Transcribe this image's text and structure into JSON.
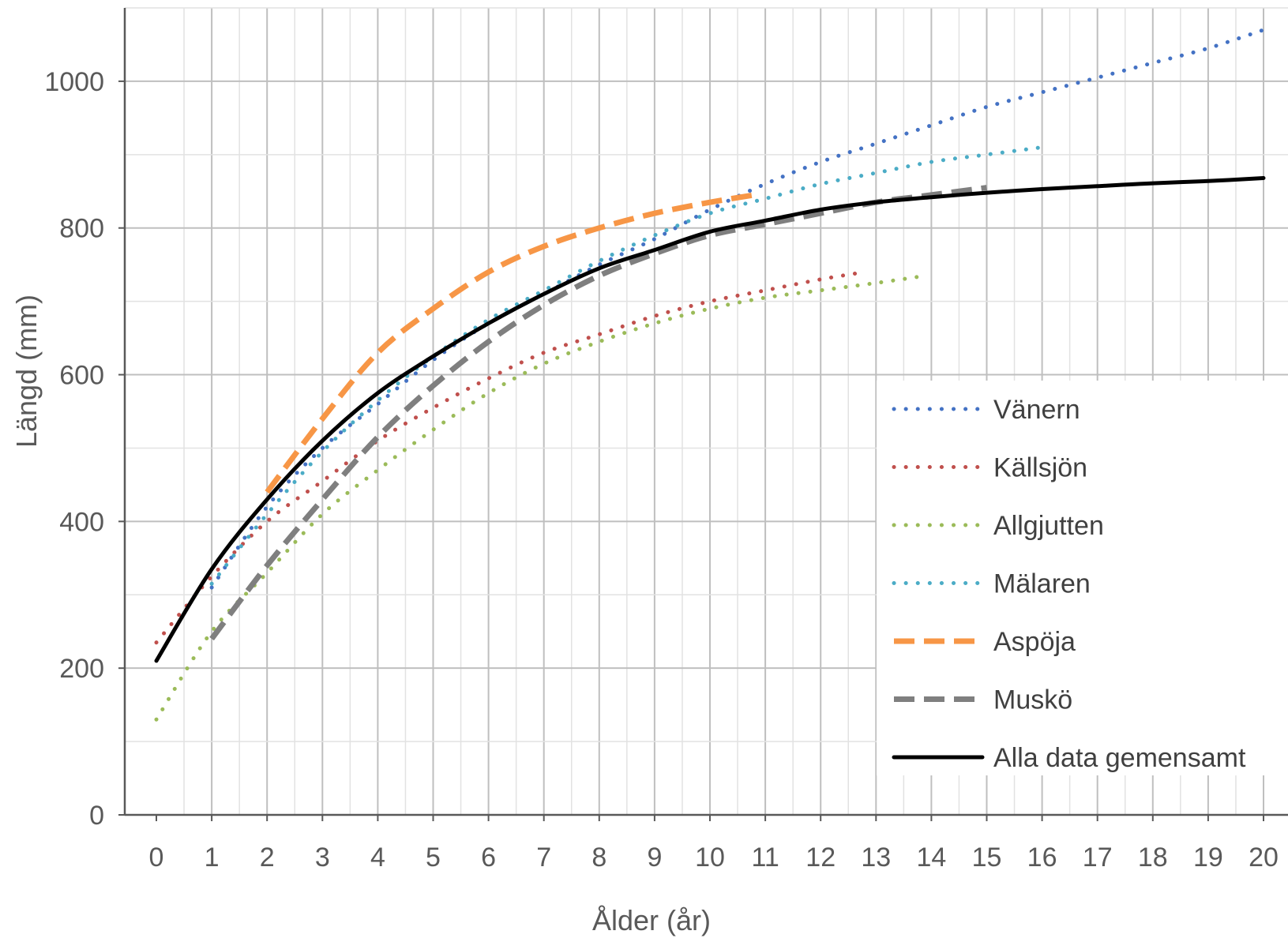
{
  "chart_data": {
    "type": "line",
    "xlabel": "Ålder (år)",
    "ylabel": "Längd (mm)",
    "xlim": [
      0,
      20
    ],
    "ylim": [
      0,
      1100
    ],
    "x_ticks": [
      "0",
      "1",
      "2",
      "3",
      "4",
      "5",
      "6",
      "7",
      "8",
      "9",
      "10",
      "11",
      "12",
      "13",
      "14",
      "15",
      "16",
      "17",
      "18",
      "19",
      "20"
    ],
    "y_ticks": [
      "0",
      "200",
      "400",
      "600",
      "800",
      "1000"
    ],
    "grid": true,
    "legend_position": "right",
    "series": [
      {
        "name": "Vänern",
        "color": "#4472C4",
        "style": "dotted",
        "x": [
          1,
          2,
          3,
          4,
          5,
          6,
          7,
          8,
          9,
          10,
          11,
          12,
          13,
          14,
          15,
          16,
          17,
          18,
          19,
          20
        ],
        "y": [
          310,
          420,
          500,
          560,
          620,
          670,
          710,
          750,
          785,
          825,
          860,
          890,
          915,
          940,
          965,
          985,
          1005,
          1025,
          1045,
          1070
        ]
      },
      {
        "name": "Källsjön",
        "color": "#C0504D",
        "style": "dotted",
        "x": [
          0,
          1,
          2,
          3,
          4,
          5,
          6,
          7,
          8,
          9,
          10,
          11,
          12,
          12.8
        ],
        "y": [
          235,
          325,
          400,
          455,
          510,
          555,
          595,
          630,
          655,
          680,
          700,
          715,
          730,
          740
        ]
      },
      {
        "name": "Allgjutten",
        "color": "#9BBB59",
        "style": "dotted",
        "x": [
          0,
          1,
          2,
          3,
          4,
          5,
          6,
          7,
          8,
          9,
          10,
          11,
          12,
          13,
          13.9
        ],
        "y": [
          130,
          250,
          330,
          410,
          470,
          525,
          575,
          615,
          645,
          670,
          690,
          705,
          715,
          725,
          735
        ]
      },
      {
        "name": "Mälaren",
        "color": "#4BACC6",
        "style": "dotted",
        "x": [
          1,
          2,
          3,
          4,
          5,
          6,
          7,
          8,
          9,
          10,
          11,
          12,
          13,
          14,
          15,
          16
        ],
        "y": [
          315,
          410,
          495,
          565,
          625,
          675,
          715,
          755,
          790,
          820,
          840,
          860,
          875,
          890,
          900,
          910
        ]
      },
      {
        "name": "Aspöja",
        "color": "#F79646",
        "style": "dashed",
        "x": [
          2,
          3,
          4,
          5,
          6,
          7,
          8,
          9,
          10,
          10.8
        ],
        "y": [
          440,
          540,
          630,
          690,
          740,
          775,
          800,
          820,
          835,
          845
        ]
      },
      {
        "name": "Muskö",
        "color": "#7F7F7F",
        "style": "dashed",
        "x": [
          1,
          2,
          3,
          4,
          5,
          6,
          7,
          8,
          9,
          10,
          11,
          12,
          13,
          14,
          15
        ],
        "y": [
          240,
          340,
          430,
          515,
          585,
          645,
          695,
          735,
          765,
          790,
          805,
          820,
          835,
          845,
          855
        ]
      },
      {
        "name": "Alla data gemensamt",
        "color": "#000000",
        "style": "solid",
        "x": [
          0,
          1,
          2,
          3,
          4,
          5,
          6,
          7,
          8,
          9,
          10,
          11,
          12,
          13,
          14,
          15,
          16,
          17,
          18,
          19,
          20
        ],
        "y": [
          210,
          335,
          430,
          510,
          575,
          625,
          670,
          710,
          745,
          770,
          795,
          810,
          825,
          835,
          842,
          848,
          853,
          857,
          861,
          864,
          868
        ]
      }
    ]
  }
}
